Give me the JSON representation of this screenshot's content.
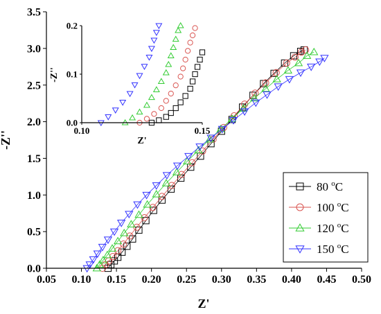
{
  "chart_data": {
    "type": "scatter",
    "xlabel": "Z'",
    "ylabel": "-Z''",
    "xlim": [
      0.05,
      0.5
    ],
    "ylim": [
      0,
      3.5
    ],
    "xticks": [
      "0.05",
      "0.10",
      "0.15",
      "0.20",
      "0.25",
      "0.30",
      "0.35",
      "0.40",
      "0.45",
      "0.50"
    ],
    "yticks": [
      "0.0",
      "0.5",
      "1.0",
      "1.5",
      "2.0",
      "2.5",
      "3.0",
      "3.5"
    ],
    "legend_position": "lower-right",
    "series": [
      {
        "name": "80 °C",
        "label_main": "80 ",
        "label_sup": "o",
        "label_unit": "C",
        "color": "#000000",
        "marker": "square",
        "points": [
          [
            0.138,
            0.0
          ],
          [
            0.142,
            0.05
          ],
          [
            0.147,
            0.1
          ],
          [
            0.152,
            0.15
          ],
          [
            0.158,
            0.22
          ],
          [
            0.165,
            0.3
          ],
          [
            0.173,
            0.4
          ],
          [
            0.182,
            0.52
          ],
          [
            0.192,
            0.65
          ],
          [
            0.203,
            0.79
          ],
          [
            0.215,
            0.93
          ],
          [
            0.228,
            1.08
          ],
          [
            0.242,
            1.23
          ],
          [
            0.256,
            1.38
          ],
          [
            0.27,
            1.53
          ],
          [
            0.285,
            1.7
          ],
          [
            0.3,
            1.87
          ],
          [
            0.315,
            2.03
          ],
          [
            0.33,
            2.2
          ],
          [
            0.345,
            2.36
          ],
          [
            0.36,
            2.52
          ],
          [
            0.375,
            2.66
          ],
          [
            0.39,
            2.8
          ],
          [
            0.403,
            2.9
          ],
          [
            0.413,
            2.96
          ],
          [
            0.418,
            2.98
          ]
        ]
      },
      {
        "name": "100 °C",
        "label_main": "100 ",
        "label_sup": "o",
        "label_unit": "C",
        "color": "#d9534f",
        "marker": "circle",
        "points": [
          [
            0.13,
            0.0
          ],
          [
            0.134,
            0.05
          ],
          [
            0.139,
            0.1
          ],
          [
            0.145,
            0.16
          ],
          [
            0.152,
            0.24
          ],
          [
            0.16,
            0.33
          ],
          [
            0.169,
            0.44
          ],
          [
            0.179,
            0.56
          ],
          [
            0.19,
            0.69
          ],
          [
            0.202,
            0.83
          ],
          [
            0.215,
            0.98
          ],
          [
            0.229,
            1.13
          ],
          [
            0.243,
            1.28
          ],
          [
            0.258,
            1.44
          ],
          [
            0.273,
            1.6
          ],
          [
            0.288,
            1.76
          ],
          [
            0.303,
            1.92
          ],
          [
            0.318,
            2.08
          ],
          [
            0.333,
            2.24
          ],
          [
            0.348,
            2.39
          ],
          [
            0.363,
            2.53
          ],
          [
            0.378,
            2.67
          ],
          [
            0.393,
            2.8
          ],
          [
            0.405,
            2.88
          ],
          [
            0.414,
            2.95
          ],
          [
            0.42,
            2.98
          ]
        ]
      },
      {
        "name": "120 °C",
        "label_main": "120 ",
        "label_sup": "o",
        "label_unit": "C",
        "color": "#33cc33",
        "marker": "triangle-up",
        "points": [
          [
            0.122,
            0.0
          ],
          [
            0.126,
            0.05
          ],
          [
            0.131,
            0.11
          ],
          [
            0.137,
            0.18
          ],
          [
            0.144,
            0.27
          ],
          [
            0.152,
            0.37
          ],
          [
            0.161,
            0.48
          ],
          [
            0.171,
            0.6
          ],
          [
            0.182,
            0.73
          ],
          [
            0.194,
            0.87
          ],
          [
            0.207,
            1.01
          ],
          [
            0.221,
            1.16
          ],
          [
            0.236,
            1.31
          ],
          [
            0.251,
            1.46
          ],
          [
            0.267,
            1.61
          ],
          [
            0.283,
            1.76
          ],
          [
            0.299,
            1.9
          ],
          [
            0.315,
            2.04
          ],
          [
            0.331,
            2.18
          ],
          [
            0.347,
            2.32
          ],
          [
            0.363,
            2.45
          ],
          [
            0.379,
            2.58
          ],
          [
            0.395,
            2.7
          ],
          [
            0.41,
            2.8
          ],
          [
            0.422,
            2.9
          ],
          [
            0.432,
            2.95
          ]
        ]
      },
      {
        "name": "150 °C",
        "label_main": "150 ",
        "label_sup": "o",
        "label_unit": "C",
        "color": "#3333ff",
        "marker": "triangle-down",
        "points": [
          [
            0.108,
            0.0
          ],
          [
            0.112,
            0.05
          ],
          [
            0.117,
            0.12
          ],
          [
            0.123,
            0.2
          ],
          [
            0.13,
            0.29
          ],
          [
            0.138,
            0.39
          ],
          [
            0.147,
            0.5
          ],
          [
            0.157,
            0.62
          ],
          [
            0.168,
            0.74
          ],
          [
            0.18,
            0.87
          ],
          [
            0.193,
            1.0
          ],
          [
            0.207,
            1.13
          ],
          [
            0.222,
            1.27
          ],
          [
            0.237,
            1.4
          ],
          [
            0.253,
            1.53
          ],
          [
            0.269,
            1.66
          ],
          [
            0.285,
            1.78
          ],
          [
            0.301,
            1.9
          ],
          [
            0.317,
            2.02
          ],
          [
            0.333,
            2.14
          ],
          [
            0.349,
            2.26
          ],
          [
            0.365,
            2.37
          ],
          [
            0.381,
            2.48
          ],
          [
            0.397,
            2.58
          ],
          [
            0.413,
            2.67
          ],
          [
            0.428,
            2.75
          ],
          [
            0.44,
            2.82
          ],
          [
            0.447,
            2.87
          ]
        ]
      }
    ],
    "inset": {
      "xlabel": "Z'",
      "ylabel": "-Z''",
      "xlim": [
        0.1,
        0.15
      ],
      "ylim": [
        0,
        0.2
      ],
      "xticks": [
        "0.10",
        "0.15"
      ],
      "yticks": [
        "0.0",
        "0.1",
        "0.2"
      ],
      "series": [
        {
          "name": "80 °C",
          "color": "#000000",
          "marker": "square",
          "points": [
            [
              0.129,
              0.0
            ],
            [
              0.132,
              0.005
            ],
            [
              0.135,
              0.012
            ],
            [
              0.137,
              0.02
            ],
            [
              0.139,
              0.03
            ],
            [
              0.141,
              0.042
            ],
            [
              0.143,
              0.055
            ],
            [
              0.145,
              0.07
            ],
            [
              0.146,
              0.085
            ],
            [
              0.147,
              0.1
            ],
            [
              0.148,
              0.115
            ],
            [
              0.149,
              0.13
            ],
            [
              0.15,
              0.145
            ]
          ]
        },
        {
          "name": "100 °C",
          "color": "#d9534f",
          "marker": "circle",
          "points": [
            [
              0.124,
              0.0
            ],
            [
              0.127,
              0.008
            ],
            [
              0.13,
              0.018
            ],
            [
              0.133,
              0.03
            ],
            [
              0.135,
              0.045
            ],
            [
              0.137,
              0.06
            ],
            [
              0.139,
              0.077
            ],
            [
              0.141,
              0.095
            ],
            [
              0.142,
              0.112
            ],
            [
              0.143,
              0.13
            ],
            [
              0.144,
              0.148
            ],
            [
              0.145,
              0.165
            ],
            [
              0.146,
              0.18
            ],
            [
              0.147,
              0.195
            ]
          ]
        },
        {
          "name": "120 °C",
          "color": "#33cc33",
          "marker": "triangle-up",
          "points": [
            [
              0.118,
              0.0
            ],
            [
              0.121,
              0.01
            ],
            [
              0.124,
              0.022
            ],
            [
              0.127,
              0.036
            ],
            [
              0.129,
              0.052
            ],
            [
              0.131,
              0.068
            ],
            [
              0.133,
              0.085
            ],
            [
              0.135,
              0.103
            ],
            [
              0.136,
              0.12
            ],
            [
              0.137,
              0.138
            ],
            [
              0.138,
              0.155
            ],
            [
              0.139,
              0.172
            ],
            [
              0.14,
              0.19
            ],
            [
              0.141,
              0.2
            ]
          ]
        },
        {
          "name": "150 °C",
          "color": "#3333ff",
          "marker": "triangle-down",
          "points": [
            [
              0.108,
              0.0
            ],
            [
              0.111,
              0.012
            ],
            [
              0.114,
              0.026
            ],
            [
              0.117,
              0.042
            ],
            [
              0.12,
              0.06
            ],
            [
              0.122,
              0.078
            ],
            [
              0.124,
              0.097
            ],
            [
              0.126,
              0.116
            ],
            [
              0.128,
              0.135
            ],
            [
              0.129,
              0.153
            ],
            [
              0.13,
              0.17
            ],
            [
              0.131,
              0.186
            ],
            [
              0.132,
              0.2
            ]
          ]
        }
      ]
    }
  }
}
